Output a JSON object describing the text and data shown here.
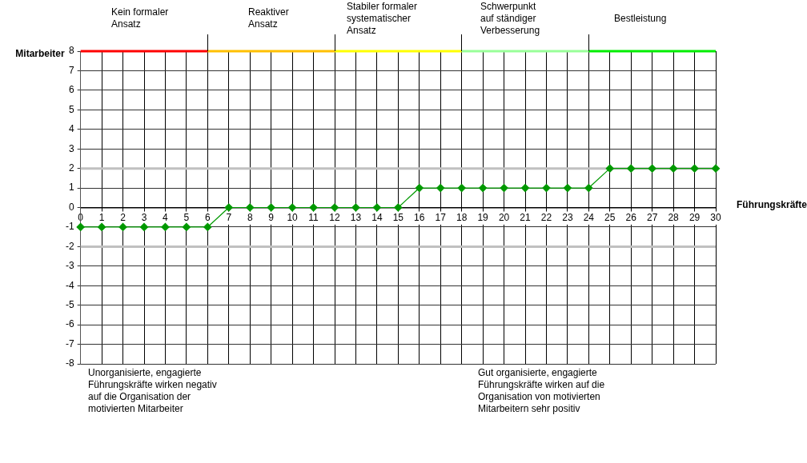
{
  "chart_data": {
    "type": "line",
    "xlabel": "Führungskräfte",
    "ylabel": "Mitarbeiter",
    "x": [
      0,
      1,
      2,
      3,
      4,
      5,
      6,
      7,
      8,
      9,
      10,
      11,
      12,
      13,
      14,
      15,
      16,
      17,
      18,
      19,
      20,
      21,
      22,
      23,
      24,
      25,
      26,
      27,
      28,
      29,
      30
    ],
    "series": [
      {
        "color": "#009900",
        "values": [
          -1,
          -1,
          -1,
          -1,
          -1,
          -1,
          -1,
          0,
          0,
          0,
          0,
          0,
          0,
          0,
          0,
          0,
          1,
          1,
          1,
          1,
          1,
          1,
          1,
          1,
          1,
          2,
          2,
          2,
          2,
          2,
          2
        ]
      },
      {
        "color": "#c0c0c0",
        "x": [
          0,
          30
        ],
        "values": [
          2,
          2
        ],
        "marker": "none"
      },
      {
        "color": "#c0c0c0",
        "x": [
          0,
          30
        ],
        "values": [
          -2,
          -2
        ],
        "marker": "none"
      },
      {
        "color": "#ff0000",
        "x": [
          0,
          6
        ],
        "values": [
          8,
          8
        ],
        "marker": "none"
      },
      {
        "color": "#ffc000",
        "x": [
          6,
          12
        ],
        "values": [
          8,
          8
        ],
        "marker": "none"
      },
      {
        "color": "#ffff00",
        "x": [
          12,
          18
        ],
        "values": [
          8,
          8
        ],
        "marker": "none"
      },
      {
        "color": "#99ff99",
        "x": [
          18,
          24
        ],
        "values": [
          8,
          8
        ],
        "marker": "none"
      },
      {
        "color": "#00ee00",
        "x": [
          24,
          30
        ],
        "values": [
          8,
          8
        ],
        "marker": "none"
      }
    ],
    "xlim": [
      0,
      30
    ],
    "ylim": [
      -8,
      8
    ],
    "xticks": [
      0,
      1,
      2,
      3,
      4,
      5,
      6,
      7,
      8,
      9,
      10,
      11,
      12,
      13,
      14,
      15,
      16,
      17,
      18,
      19,
      20,
      21,
      22,
      23,
      24,
      25,
      26,
      27,
      28,
      29,
      30
    ],
    "yticks": [
      -8,
      -7,
      -6,
      -5,
      -4,
      -3,
      -2,
      -1,
      0,
      1,
      2,
      3,
      4,
      5,
      6,
      7,
      8
    ],
    "grid": true,
    "legend": false,
    "marker": "diamond",
    "line_style": "solid",
    "annotations": [
      "Kein formaler\nAnsatz",
      "Reaktiver\nAnsatz",
      "Stabiler formaler\nsystematischer\nAnsatz",
      "Schwerpunkt\nauf ständiger\nVerbesserung",
      "Bestleistung",
      "Unorganisierte, engagierte\nFührungskräfte wirken negativ\nauf die Organisation der\nmotivierten Mitarbeiter",
      "Gut organisierte, engagierte\nFührungskräfte wirken auf die\nOrganisation von motivierten\nMitarbeitern sehr positiv"
    ]
  }
}
